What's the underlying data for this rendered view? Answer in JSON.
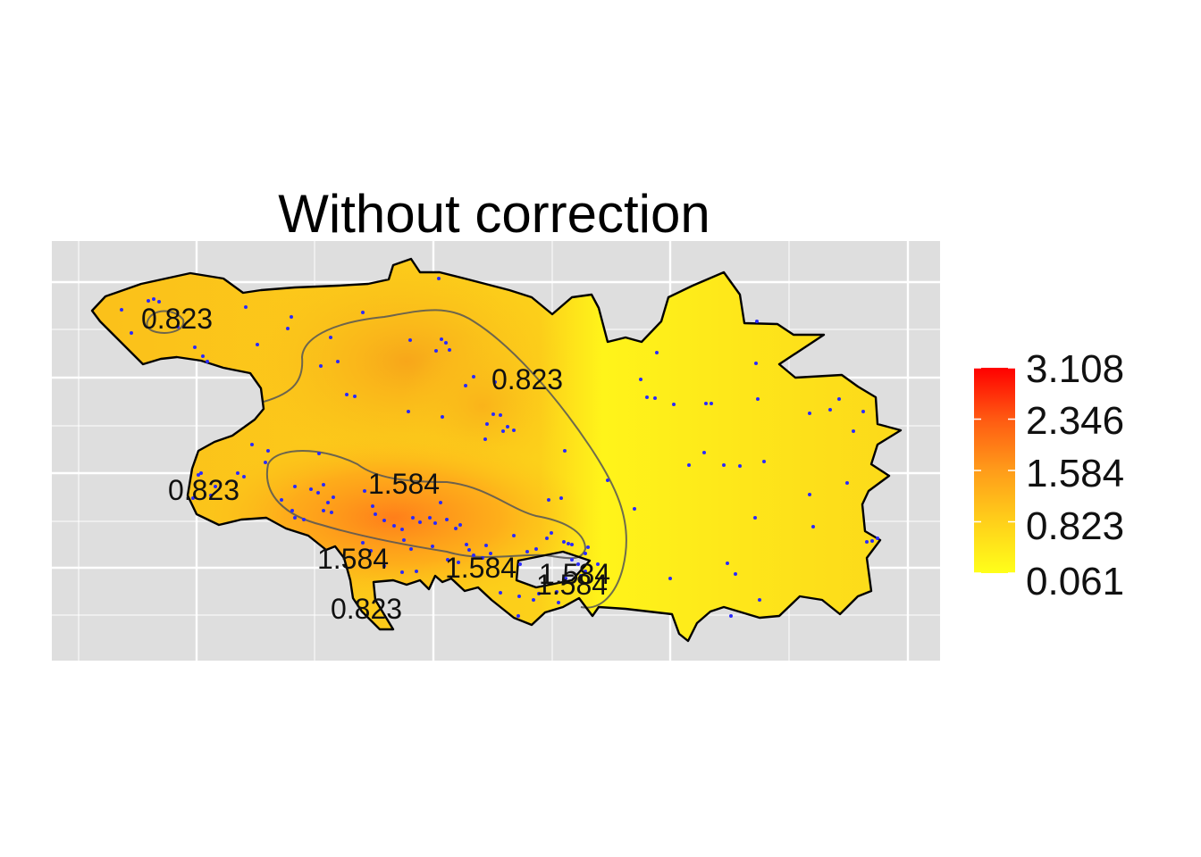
{
  "chart_data": {
    "type": "heatmap",
    "title": "Without correction",
    "xlabel": "",
    "ylabel": "",
    "grid": true,
    "legend_placement": "right",
    "colors": {
      "panel_background": "#dedede",
      "grid": "#ffffff",
      "low": "#ffff1a",
      "mid": "#ff8a1a",
      "high": "#ff0000",
      "points": "#2a2aff",
      "contour": "#555555",
      "outline": "#000000"
    },
    "legend": {
      "values": [
        3.108,
        2.346,
        1.584,
        0.823,
        0.061
      ],
      "labels": [
        "3.108",
        "2.346",
        "1.584",
        "0.823",
        "0.061"
      ]
    },
    "contour_levels": [
      0.823,
      1.584
    ],
    "contour_labels": [
      "0.823",
      "0.823",
      "0.823",
      "1.584",
      "1.584",
      "1.584",
      "1.584",
      "1.584",
      "0.823"
    ]
  }
}
